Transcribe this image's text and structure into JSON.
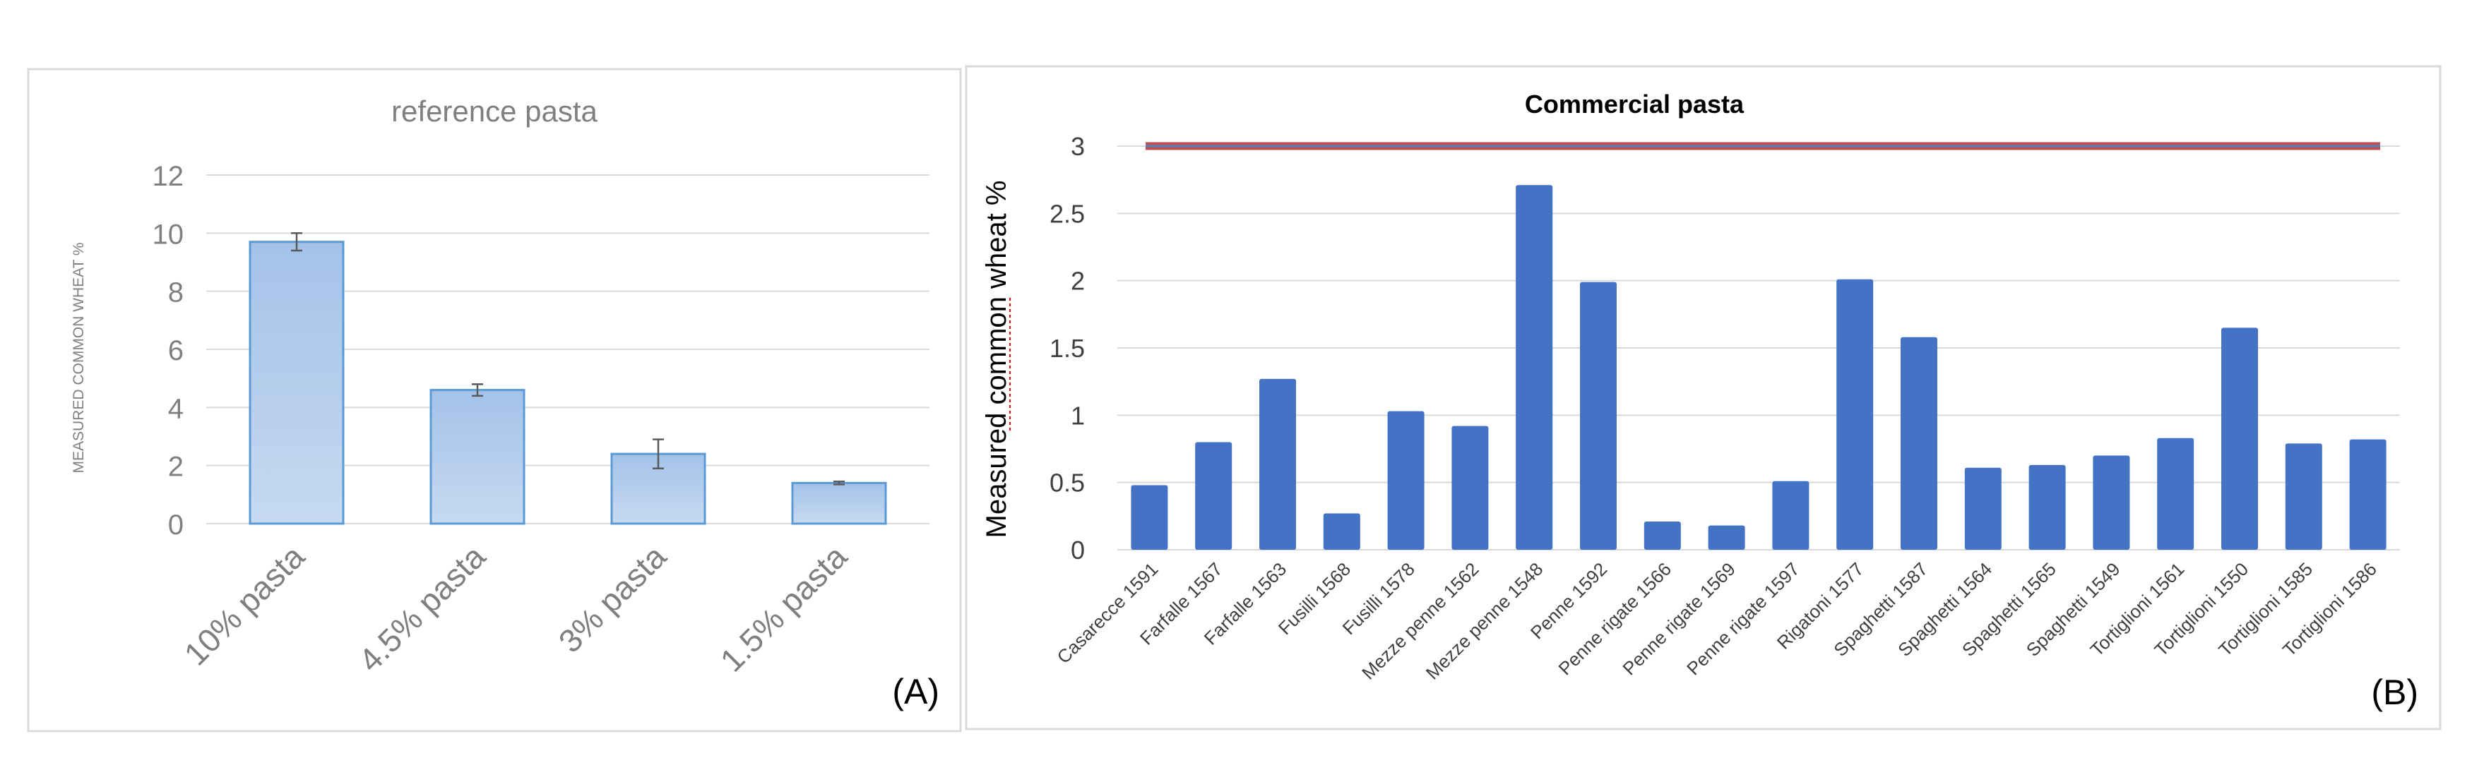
{
  "colors": {
    "panel_a_bar_fill_top": "#a4c2e8",
    "panel_a_bar_fill_bottom": "#c6d9f1",
    "panel_a_bar_stroke": "#5b9bd5",
    "panel_b_bar_fill": "#4472c4",
    "threshold_line_outer": "#c0504d",
    "threshold_line_inner": "#4f81bd",
    "grid": "#d9d9d9",
    "axis_text_a": "#7f7f7f",
    "axis_text_b": "#404040",
    "spellcheck_underline": "#ff0000",
    "panel_border": "#d9d9d9"
  },
  "chart_data": [
    {
      "id": "A",
      "type": "bar",
      "title": "reference pasta",
      "panel_label": "(A)",
      "ylabel": "MEASURED COMMON WHEAT %",
      "xlabel": "",
      "ylim": [
        0,
        12
      ],
      "yticks": [
        0,
        2,
        4,
        6,
        8,
        10,
        12
      ],
      "grid": true,
      "categories": [
        "10%  pasta",
        "4.5%  pasta",
        "3%  pasta",
        "1.5%  pasta"
      ],
      "values": [
        9.7,
        4.6,
        2.4,
        1.4
      ],
      "errors": [
        0.3,
        0.2,
        0.5,
        0.05
      ]
    },
    {
      "id": "B",
      "type": "bar",
      "title": "Commercial pasta",
      "panel_label": "(B)",
      "ylabel": "Measured common wheat %",
      "xlabel": "",
      "ylim": [
        0,
        3
      ],
      "yticks": [
        0,
        0.5,
        1,
        1.5,
        2,
        2.5,
        3
      ],
      "grid": true,
      "threshold": 3,
      "categories": [
        "Casarecce 1591",
        "Farfalle 1567",
        "Farfalle 1563",
        "Fusilli 1568",
        "Fusilli 1578",
        "Mezze penne 1562",
        "Mezze penne 1548",
        "Penne 1592",
        "Penne rigate 1566",
        "Penne rigate 1569",
        "Penne rigate 1597",
        "Rigatoni 1577",
        "Spaghetti 1587",
        "Spaghetti 1564",
        "Spaghetti 1565",
        "Spaghetti 1549",
        "Tortiglioni 1561",
        "Tortiglioni 1550",
        "Tortiglioni 1585",
        "Tortiglioni 1586"
      ],
      "values": [
        0.48,
        0.8,
        1.27,
        0.27,
        1.03,
        0.92,
        2.71,
        1.99,
        0.21,
        0.18,
        0.51,
        2.01,
        1.58,
        0.61,
        0.63,
        0.7,
        0.83,
        1.65,
        0.79,
        0.82
      ]
    }
  ]
}
